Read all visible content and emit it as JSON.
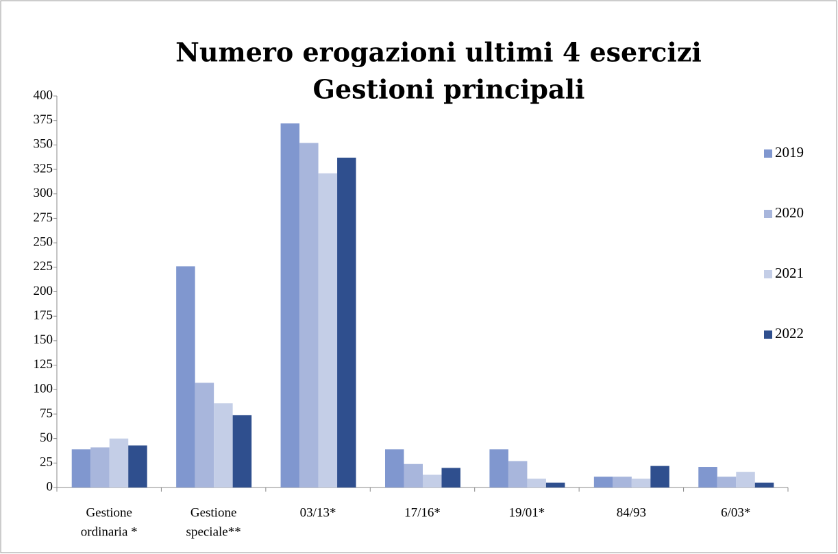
{
  "chart_data": {
    "type": "bar",
    "title": "Numero erogazioni ultimi 4 esercizi",
    "subtitle": "Gestioni  principali",
    "categories": [
      [
        "Gestione",
        "ordinaria *"
      ],
      [
        "Gestione",
        "speciale**"
      ],
      "03/13*",
      "17/16*",
      "19/01*",
      "84/93",
      "6/03*"
    ],
    "series": [
      {
        "name": "2019",
        "color": "#8097cf",
        "values": [
          39,
          226,
          372,
          39,
          39,
          11,
          21
        ]
      },
      {
        "name": "2020",
        "color": "#a8b6dc",
        "values": [
          41,
          107,
          352,
          24,
          27,
          11,
          11
        ]
      },
      {
        "name": "2021",
        "color": "#c4cee7",
        "values": [
          50,
          86,
          321,
          13,
          9,
          9,
          16
        ]
      },
      {
        "name": "2022",
        "color": "#2f4f8e",
        "values": [
          43,
          74,
          337,
          20,
          5,
          22,
          5
        ]
      }
    ],
    "ylim": [
      0,
      400
    ],
    "yticks": [
      0,
      25,
      50,
      75,
      100,
      125,
      150,
      175,
      200,
      225,
      250,
      275,
      300,
      325,
      350,
      375,
      400
    ],
    "legend": "right"
  }
}
